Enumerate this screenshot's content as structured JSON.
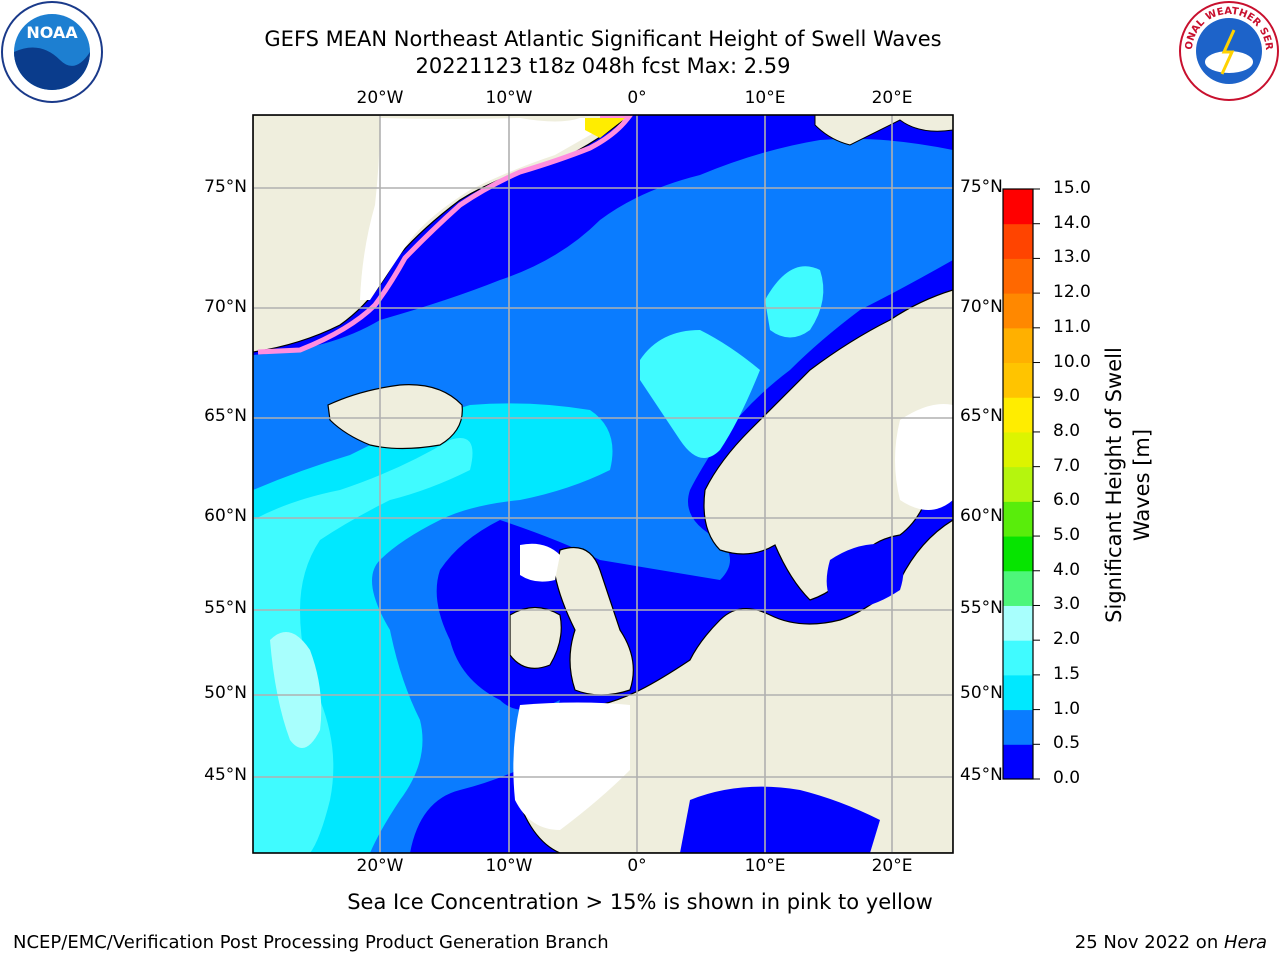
{
  "title": {
    "line1": "GEFS MEAN Northeast Atlantic Significant Height of Swell Waves",
    "line2": "20221123 t18z 048h fcst   Max: 2.59"
  },
  "logos": {
    "left": {
      "icon": "noaa-logo-icon",
      "text": "NOAA"
    },
    "right": {
      "icon": "nws-logo-icon",
      "text": "NATIONAL WEATHER SERVICE"
    }
  },
  "map": {
    "lon_labels": [
      "20°W",
      "10°W",
      "0°",
      "10°E",
      "20°E"
    ],
    "lat_labels": [
      "75°N",
      "70°N",
      "65°N",
      "60°N",
      "55°N",
      "50°N",
      "45°N"
    ],
    "colors": {
      "land": "#efeedd",
      "no_data": "#ffffff",
      "ice": "#ff8ee0",
      "grid": "#b0b0b0"
    }
  },
  "colorbar": {
    "label": "Significant Height of Swell Waves [m]",
    "ticks": [
      "15.0",
      "14.0",
      "13.0",
      "12.0",
      "11.0",
      "10.0",
      "9.0",
      "8.0",
      "7.0",
      "6.0",
      "5.0",
      "4.0",
      "3.0",
      "2.0",
      "1.5",
      "1.0",
      "0.5",
      "0.0"
    ],
    "colors": [
      "#0000ff",
      "#0a7cff",
      "#00e8ff",
      "#40fbff",
      "#a8fffd",
      "#4df67a",
      "#06e400",
      "#59ed0b",
      "#b5f50e",
      "#ddf400",
      "#ffed00",
      "#ffc400",
      "#ffb000",
      "#ff8800",
      "#ff6800",
      "#ff4400",
      "#ff0000"
    ]
  },
  "notes": {
    "ice": "Sea Ice Concentration > 15% is shown in pink to yellow",
    "footer_left": "NCEP/EMC/Verification Post Processing Product Generation Branch",
    "footer_date": "25 Nov 2022 on ",
    "footer_machine": "Hera"
  }
}
